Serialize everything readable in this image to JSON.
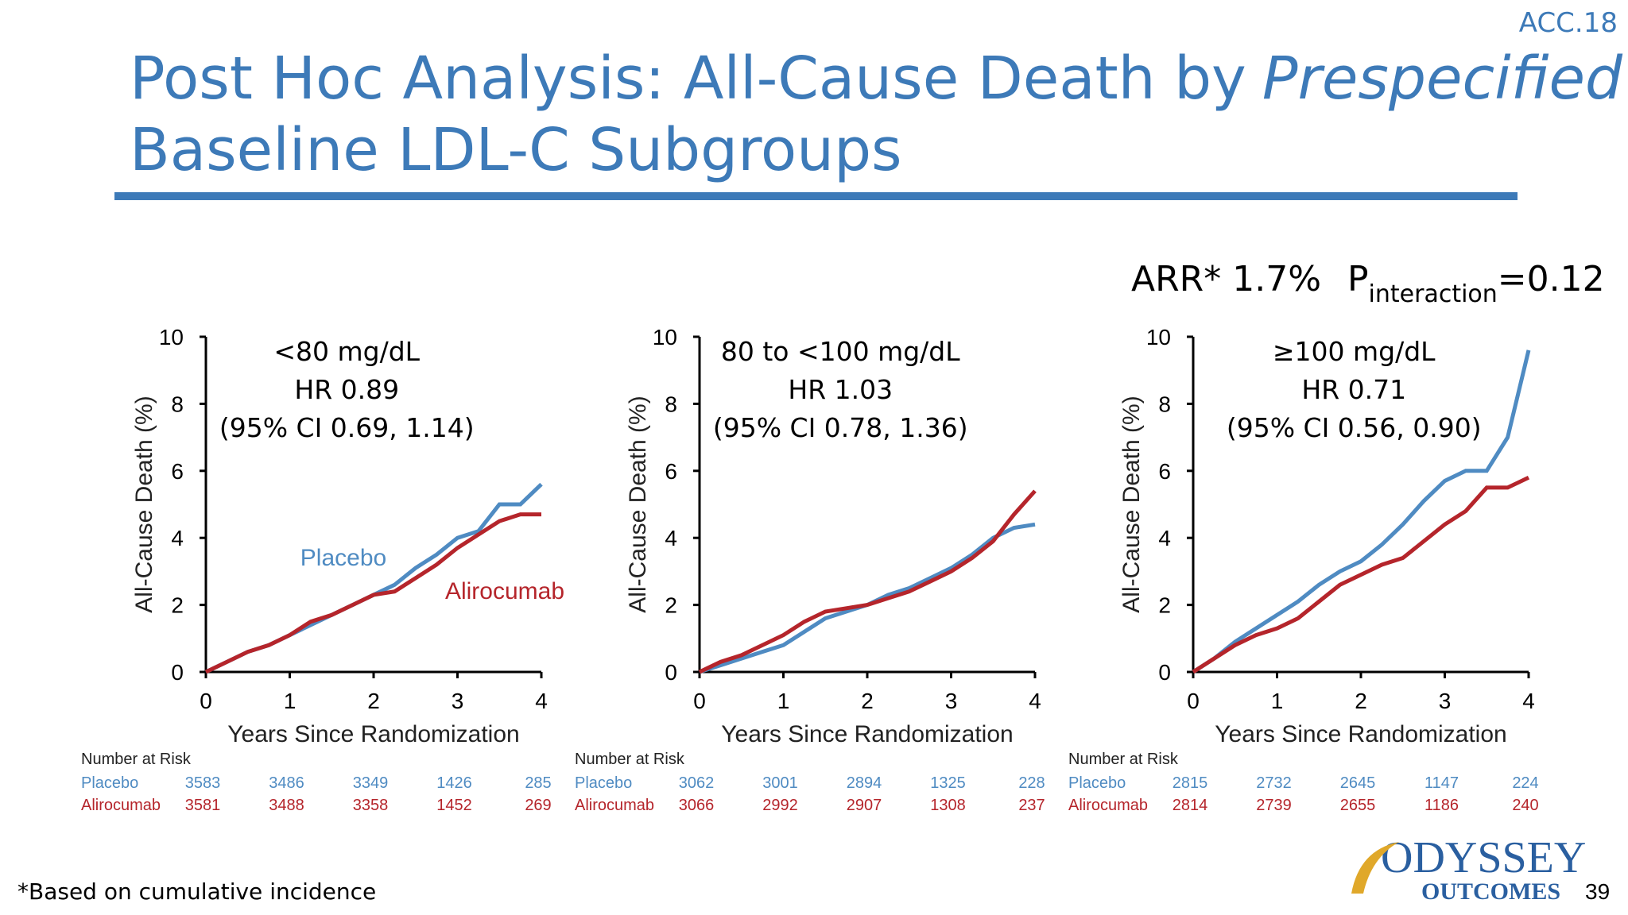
{
  "header": {
    "tag": "ACC.18",
    "title_line1": "Post Hoc Analysis: All-Cause Death by",
    "title_line1_italic": "Prespecified",
    "title_line2": "Baseline LDL-C Subgroups"
  },
  "summary": {
    "arr": "ARR* 1.7%",
    "p_label": "P",
    "p_subscript": "interaction",
    "p_value": "=0.12"
  },
  "chart_data": [
    {
      "type": "line",
      "annotations": [
        "<80 mg/dL",
        "HR 0.89",
        "(95% CI 0.69, 1.14)"
      ],
      "x_label": "Years Since Randomization",
      "y_label": "All-Cause Death (%)",
      "x": [
        0,
        0.25,
        0.5,
        0.75,
        1,
        1.25,
        1.5,
        1.75,
        2,
        2.25,
        2.5,
        2.75,
        3,
        3.25,
        3.5,
        3.75,
        4
      ],
      "xlim": [
        0,
        4
      ],
      "xticks": [
        0,
        1,
        2,
        3,
        4
      ],
      "ylim": [
        0,
        10
      ],
      "yticks": [
        0,
        2,
        4,
        6,
        8,
        10
      ],
      "risk_title": "Number at Risk",
      "series": [
        {
          "name": "Placebo",
          "color": "#4f8bc2",
          "values": [
            0,
            0.3,
            0.6,
            0.8,
            1.1,
            1.4,
            1.7,
            2.0,
            2.3,
            2.6,
            3.1,
            3.5,
            4.0,
            4.2,
            5.0,
            5.0,
            5.6
          ],
          "at_risk": [
            3583,
            3486,
            3349,
            1426,
            285
          ]
        },
        {
          "name": "Alirocumab",
          "color": "#b5252b",
          "values": [
            0,
            0.3,
            0.6,
            0.8,
            1.1,
            1.5,
            1.7,
            2.0,
            2.3,
            2.4,
            2.8,
            3.2,
            3.7,
            4.1,
            4.5,
            4.7,
            4.7
          ],
          "at_risk": [
            3581,
            3488,
            3358,
            1452,
            269
          ]
        }
      ]
    },
    {
      "type": "line",
      "annotations": [
        "80 to <100 mg/dL",
        "HR 1.03",
        "(95% CI 0.78, 1.36)"
      ],
      "x_label": "Years Since Randomization",
      "y_label": "All-Cause Death (%)",
      "x": [
        0,
        0.25,
        0.5,
        0.75,
        1,
        1.25,
        1.5,
        1.75,
        2,
        2.25,
        2.5,
        2.75,
        3,
        3.25,
        3.5,
        3.75,
        4
      ],
      "xlim": [
        0,
        4
      ],
      "xticks": [
        0,
        1,
        2,
        3,
        4
      ],
      "ylim": [
        0,
        10
      ],
      "yticks": [
        0,
        2,
        4,
        6,
        8,
        10
      ],
      "risk_title": "Number at Risk",
      "series": [
        {
          "name": "Placebo",
          "color": "#4f8bc2",
          "values": [
            0,
            0.2,
            0.4,
            0.6,
            0.8,
            1.2,
            1.6,
            1.8,
            2.0,
            2.3,
            2.5,
            2.8,
            3.1,
            3.5,
            4.0,
            4.3,
            4.4
          ],
          "at_risk": [
            3062,
            3001,
            2894,
            1325,
            228
          ]
        },
        {
          "name": "Alirocumab",
          "color": "#b5252b",
          "values": [
            0,
            0.3,
            0.5,
            0.8,
            1.1,
            1.5,
            1.8,
            1.9,
            2.0,
            2.2,
            2.4,
            2.7,
            3.0,
            3.4,
            3.9,
            4.7,
            5.4
          ],
          "at_risk": [
            3066,
            2992,
            2907,
            1308,
            237
          ]
        }
      ]
    },
    {
      "type": "line",
      "annotations": [
        "≥100 mg/dL",
        "HR 0.71",
        "(95% CI 0.56, 0.90)"
      ],
      "x_label": "Years Since Randomization",
      "y_label": "All-Cause Death (%)",
      "x": [
        0,
        0.25,
        0.5,
        0.75,
        1,
        1.25,
        1.5,
        1.75,
        2,
        2.25,
        2.5,
        2.75,
        3,
        3.25,
        3.5,
        3.75,
        4
      ],
      "xlim": [
        0,
        4
      ],
      "xticks": [
        0,
        1,
        2,
        3,
        4
      ],
      "ylim": [
        0,
        10
      ],
      "yticks": [
        0,
        2,
        4,
        6,
        8,
        10
      ],
      "risk_title": "Number at Risk",
      "series": [
        {
          "name": "Placebo",
          "color": "#4f8bc2",
          "values": [
            0,
            0.4,
            0.9,
            1.3,
            1.7,
            2.1,
            2.6,
            3.0,
            3.3,
            3.8,
            4.4,
            5.1,
            5.7,
            6.0,
            6.0,
            7.0,
            9.6
          ],
          "at_risk": [
            2815,
            2732,
            2645,
            1147,
            224
          ]
        },
        {
          "name": "Alirocumab",
          "color": "#b5252b",
          "values": [
            0,
            0.4,
            0.8,
            1.1,
            1.3,
            1.6,
            2.1,
            2.6,
            2.9,
            3.2,
            3.4,
            3.9,
            4.4,
            4.8,
            5.5,
            5.5,
            5.8
          ],
          "at_risk": [
            2814,
            2739,
            2655,
            1186,
            240
          ]
        }
      ]
    }
  ],
  "footnote": "*Based on cumulative incidence",
  "logo": {
    "line1": "ODYSSEY",
    "line2": "OUTCOMES"
  },
  "page_number": "39"
}
